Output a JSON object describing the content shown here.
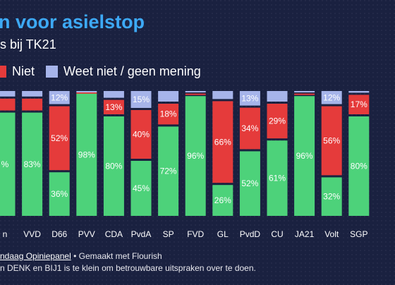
{
  "title": "n voor asielstop",
  "subtitle": "s bij TK21",
  "legend": [
    {
      "label": "Niet",
      "color": "#e53b3b"
    },
    {
      "label": "Weet niet / geen mening",
      "color": "#a6b4ea"
    }
  ],
  "footer": {
    "source": "ndaag Opiniepanel",
    "made_with": " • Gemaakt met Flourish",
    "note": "n DENK en BIJ1 is te klein om betrouwbare uitspraken over te doen."
  },
  "chart_data": {
    "type": "bar",
    "stacked": true,
    "categories": [
      "n",
      "VVD",
      "D66",
      "PVV",
      "CDA",
      "PvdA",
      "SP",
      "FVD",
      "GL",
      "PvdD",
      "CU",
      "JA21",
      "Volt",
      "SGP"
    ],
    "series": [
      {
        "name": "",
        "color": "#4dd27a",
        "values": [
          83,
          83,
          36,
          98,
          80,
          45,
          72,
          96,
          26,
          52,
          61,
          96,
          32,
          80
        ]
      },
      {
        "name": "Niet",
        "color": "#e53b3b",
        "values": [
          11,
          11,
          52,
          1,
          13,
          40,
          18,
          2,
          66,
          34,
          29,
          2,
          56,
          17
        ]
      },
      {
        "name": "Weet niet / geen mening",
        "color": "#a6b4ea",
        "values": [
          6,
          6,
          12,
          1,
          7,
          15,
          10,
          2,
          8,
          13,
          10,
          2,
          12,
          3
        ]
      }
    ],
    "labels": [
      [
        "%",
        "83%",
        "36%",
        "98%",
        "80%",
        "45%",
        "72%",
        "96%",
        "26%",
        "52%",
        "61%",
        "96%",
        "32%",
        "80%"
      ],
      [
        "",
        "",
        "52%",
        "",
        "13%",
        "40%",
        "18%",
        "",
        "66%",
        "34%",
        "29%",
        "",
        "56%",
        "17%"
      ],
      [
        "",
        "",
        "12%",
        "",
        "",
        "15%",
        "",
        "",
        "",
        "13%",
        "",
        "",
        "12%",
        ""
      ]
    ],
    "ylim": [
      0,
      100
    ]
  }
}
